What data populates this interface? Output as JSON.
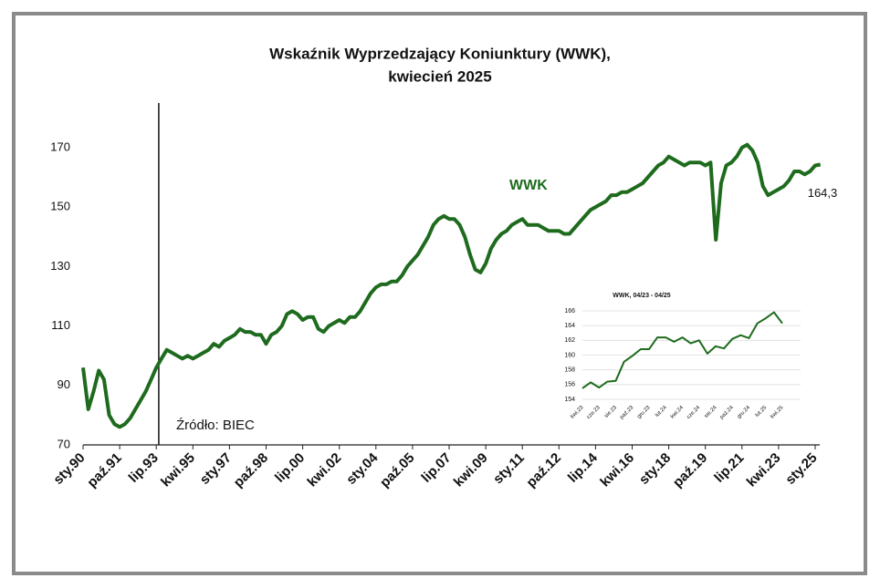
{
  "chart_data": [
    {
      "type": "line",
      "title": [
        "Wskaźnik Wyprzedzający Koniunktury (WWK),",
        "kwiecień 2025"
      ],
      "source": "Źródło: BIEC",
      "categories": [
        "sty.90",
        null,
        null,
        null,
        null,
        null,
        null,
        "paź.91",
        null,
        null,
        null,
        null,
        null,
        null,
        "lip.93",
        null,
        null,
        null,
        null,
        null,
        null,
        "kwi.95",
        null,
        null,
        null,
        null,
        null,
        null,
        "sty.97",
        null,
        null,
        null,
        null,
        null,
        null,
        "paź.98",
        null,
        null,
        null,
        null,
        null,
        null,
        "lip.00",
        null,
        null,
        null,
        null,
        null,
        null,
        "kwi.02",
        null,
        null,
        null,
        null,
        null,
        null,
        "sty.04",
        null,
        null,
        null,
        null,
        null,
        null,
        "paź.05",
        null,
        null,
        null,
        null,
        null,
        null,
        "lip.07",
        null,
        null,
        null,
        null,
        null,
        null,
        "kwi.09",
        null,
        null,
        null,
        null,
        null,
        null,
        "sty.11",
        null,
        null,
        null,
        null,
        null,
        null,
        "paź.12",
        null,
        null,
        null,
        null,
        null,
        null,
        "lip.14",
        null,
        null,
        null,
        null,
        null,
        null,
        "kwi.16",
        null,
        null,
        null,
        null,
        null,
        null,
        "sty.18",
        null,
        null,
        null,
        null,
        null,
        null,
        "paź.19",
        null,
        null,
        null,
        null,
        null,
        null,
        "lip.21",
        null,
        null,
        null,
        null,
        null,
        null,
        "kwi.23",
        null,
        null,
        null,
        null,
        null,
        null,
        "sty.25",
        null
      ],
      "series": [
        {
          "name": "WWK",
          "color": "#1e6b1e",
          "values": [
            96,
            82,
            88,
            95,
            92,
            80,
            77,
            76,
            77,
            79,
            82,
            85,
            88,
            92,
            96,
            99,
            102,
            101,
            100,
            99,
            100,
            99,
            100,
            101,
            102,
            104,
            103,
            105,
            106,
            107,
            109,
            108,
            108,
            107,
            107,
            104,
            107,
            108,
            110,
            114,
            115,
            114,
            112,
            113,
            113,
            109,
            108,
            110,
            111,
            112,
            111,
            113,
            113,
            115,
            118,
            121,
            123,
            124,
            124,
            125,
            125,
            127,
            130,
            132,
            134,
            137,
            140,
            144,
            146,
            147,
            146,
            146,
            144,
            140,
            134,
            129,
            128,
            131,
            136,
            139,
            141,
            142,
            144,
            145,
            146,
            144,
            144,
            144,
            143,
            142,
            142,
            142,
            141,
            141,
            143,
            145,
            147,
            149,
            150,
            151,
            152,
            154,
            154,
            155,
            155,
            156,
            157,
            158,
            160,
            162,
            164,
            165,
            167,
            166,
            165,
            164,
            165,
            165,
            165,
            164,
            165,
            139,
            158,
            164,
            165,
            167,
            170,
            171,
            169,
            165,
            157,
            154,
            155,
            156,
            157,
            159,
            162,
            162,
            161,
            162,
            164,
            164.3
          ],
          "value_labels": [
            null,
            null,
            null,
            null,
            null,
            null,
            null,
            null,
            null,
            null,
            null,
            null,
            null,
            null,
            null,
            null,
            null,
            null,
            null,
            null,
            null,
            null,
            null,
            null,
            null,
            null,
            null,
            null,
            null,
            null,
            null,
            null,
            null,
            null,
            null,
            null,
            null,
            null,
            null,
            null,
            null,
            null,
            null,
            null,
            null,
            null,
            null,
            null,
            null,
            null,
            null,
            null,
            null,
            null,
            null,
            null,
            null,
            null,
            null,
            null,
            null,
            null,
            null,
            null,
            null,
            null,
            null,
            null,
            null,
            null,
            null,
            null,
            null,
            null,
            null,
            null,
            null,
            null,
            null,
            null,
            null,
            null,
            null,
            null,
            null,
            null,
            null,
            null,
            null,
            null,
            null,
            null,
            null,
            null,
            null,
            null,
            null,
            null,
            null,
            null,
            null,
            null,
            null,
            null,
            null,
            null,
            null,
            null,
            null,
            null,
            null,
            null,
            null,
            null,
            null,
            null,
            null,
            null,
            null,
            null,
            null,
            null,
            null,
            null,
            null,
            null,
            null,
            null,
            null,
            null,
            null,
            null,
            null,
            null,
            null,
            null,
            null,
            null,
            null,
            null,
            null,
            "164,3"
          ]
        }
      ],
      "ylim": [
        70,
        185
      ],
      "yticks": [
        70,
        90,
        110,
        130,
        150,
        170
      ]
    },
    {
      "type": "line",
      "title": "WWK, 04/23 - 04/25",
      "categories": [
        "kwi.23",
        null,
        "cze.23",
        null,
        "sie.23",
        null,
        "paź.23",
        null,
        "gru.23",
        null,
        "lut.24",
        null,
        "kwi.24",
        null,
        "cze.24",
        null,
        "sie.24",
        null,
        "paź.24",
        null,
        "gru.24",
        null,
        "lut.25",
        null,
        "kwi.25"
      ],
      "series": [
        {
          "name": "WWK",
          "color": "#1e6b1e",
          "values": [
            155.5,
            156.3,
            155.6,
            156.4,
            156.5,
            159.1,
            159.9,
            160.8,
            160.8,
            162.4,
            162.4,
            161.8,
            162.4,
            161.6,
            162.0,
            160.2,
            161.2,
            160.9,
            162.2,
            162.7,
            162.3,
            164.3,
            165.0,
            165.8,
            164.3
          ]
        }
      ],
      "ylim": [
        154,
        166
      ],
      "yticks": [
        154,
        156,
        158,
        160,
        162,
        164,
        166
      ],
      "grid": true
    }
  ]
}
